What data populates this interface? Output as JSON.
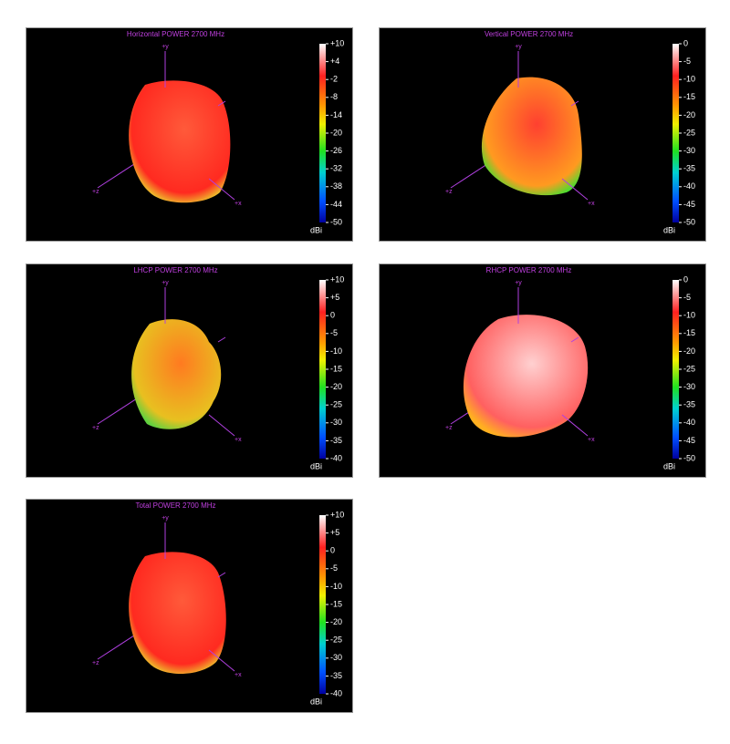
{
  "chart_data": [
    {
      "type": "surface3d",
      "title": "Horizontal POWER 2700  MHz",
      "unit": "dBi",
      "axis_labels": [
        "+y",
        "+z",
        "+x"
      ],
      "clim": [
        -50,
        10
      ],
      "cticks": [
        {
          "value": 10,
          "label": "+10"
        },
        {
          "value": 4,
          "label": "+4"
        },
        -2,
        -8,
        -14,
        -20,
        -26,
        -32,
        -38,
        -44,
        -50
      ]
    },
    {
      "type": "surface3d",
      "title": "Vertical POWER 2700  MHz",
      "unit": "dBi",
      "axis_labels": [
        "+y",
        "+z",
        "+x"
      ],
      "clim": [
        -50,
        0
      ],
      "cticks": [
        0,
        -5,
        -10,
        -15,
        -20,
        -25,
        -30,
        -35,
        -40,
        -45,
        -50
      ]
    },
    {
      "type": "surface3d",
      "title": "LHCP POWER 2700  MHz",
      "unit": "dBi",
      "axis_labels": [
        "+y",
        "+z",
        "+x"
      ],
      "clim": [
        -40,
        10
      ],
      "cticks": [
        {
          "value": 10,
          "label": "+10"
        },
        {
          "value": 5,
          "label": "+5"
        },
        0,
        -5,
        -10,
        -15,
        -20,
        -25,
        -30,
        -35,
        -40
      ]
    },
    {
      "type": "surface3d",
      "title": "RHCP POWER 2700  MHz",
      "unit": "dBi",
      "axis_labels": [
        "+y",
        "+z",
        "+x"
      ],
      "clim": [
        -50,
        0
      ],
      "cticks": [
        0,
        -5,
        -10,
        -15,
        -20,
        -25,
        -30,
        -35,
        -40,
        -45,
        -50
      ]
    },
    {
      "type": "surface3d",
      "title": "Total POWER 2700  MHz",
      "unit": "dBi",
      "axis_labels": [
        "+y",
        "+z",
        "+x"
      ],
      "clim": [
        -40,
        10
      ],
      "cticks": [
        {
          "value": 10,
          "label": "+10"
        },
        {
          "value": 5,
          "label": "+5"
        },
        0,
        -5,
        -10,
        -15,
        -20,
        -25,
        -30,
        -35,
        -40
      ]
    }
  ]
}
